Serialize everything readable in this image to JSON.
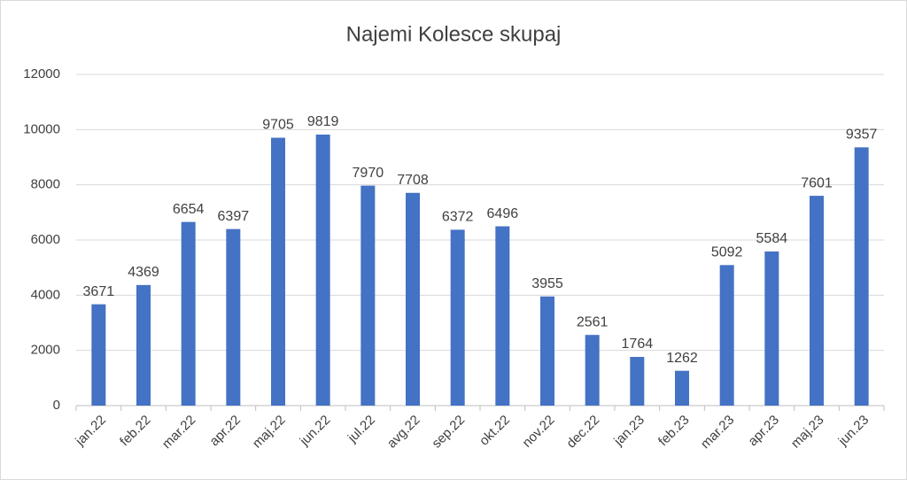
{
  "chart_data": {
    "type": "bar",
    "title": "Najemi Kolesce skupaj",
    "categories": [
      "jan.22",
      "feb.22",
      "mar.22",
      "apr.22",
      "maj.22",
      "jun.22",
      "jul.22",
      "avg.22",
      "sep.22",
      "okt.22",
      "nov.22",
      "dec.22",
      "jan.23",
      "feb.23",
      "mar.23",
      "apr.23",
      "maj.23",
      "jun.23"
    ],
    "values": [
      3671,
      4369,
      6654,
      6397,
      9705,
      9819,
      7970,
      7708,
      6372,
      6496,
      3955,
      2561,
      1764,
      1262,
      5092,
      5584,
      7601,
      9357
    ],
    "color": "#4472c4",
    "ylim": [
      0,
      12000
    ],
    "yticks": [
      0,
      2000,
      4000,
      6000,
      8000,
      10000,
      12000
    ],
    "grid": true
  }
}
